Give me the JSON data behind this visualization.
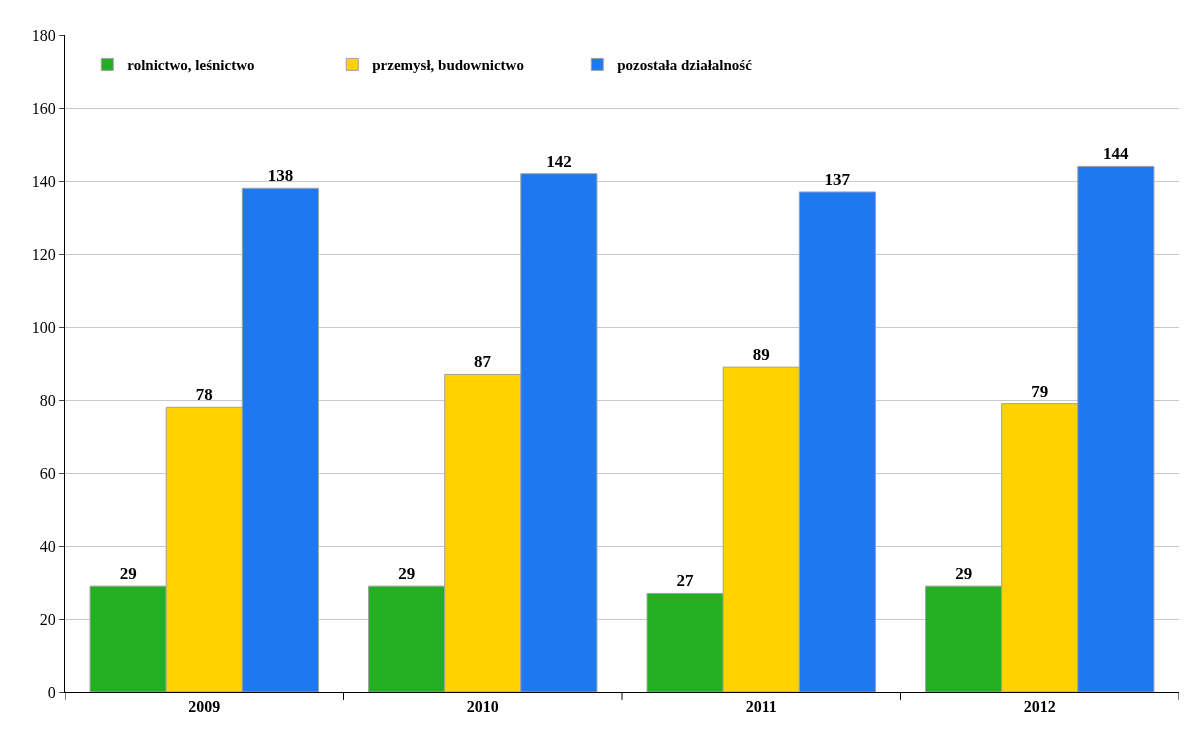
{
  "chart_data": {
    "type": "bar",
    "categories": [
      "2009",
      "2010",
      "2011",
      "2012"
    ],
    "series": [
      {
        "name": "rolnictwo, leśnictwo",
        "color": "#22b022",
        "values": [
          29,
          29,
          27,
          29
        ]
      },
      {
        "name": "przemysł, budownictwo",
        "color": "#ffd200",
        "values": [
          78,
          87,
          89,
          79
        ]
      },
      {
        "name": "pozostała działalność",
        "color": "#1e78f0",
        "values": [
          138,
          142,
          137,
          144
        ]
      }
    ],
    "ylim": [
      0,
      180
    ],
    "yticks": [
      0,
      20,
      40,
      60,
      80,
      100,
      120,
      140,
      160,
      180
    ],
    "grid": "y",
    "legend": "top left",
    "data_labels": true
  }
}
